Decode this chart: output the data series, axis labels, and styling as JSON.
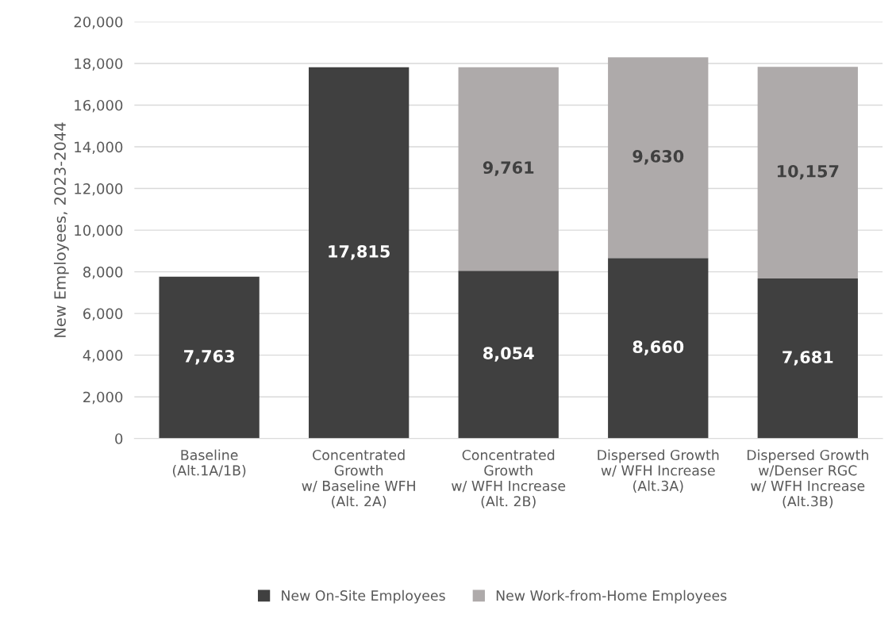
{
  "chart_data": {
    "type": "bar",
    "stacked": true,
    "ylabel": "New Employees, 2023-2044",
    "categories": [
      "Baseline\n(Alt.1A/1B)",
      "Concentrated\nGrowth\nw/ Baseline WFH\n(Alt. 2A)",
      "Concentrated\nGrowth\nw/ WFH Increase\n(Alt. 2B)",
      "Dispersed Growth\nw/ WFH Increase\n(Alt.3A)",
      "Dispersed Growth\nw/Denser RGC\nw/ WFH Increase\n(Alt.3B)"
    ],
    "series": [
      {
        "name": "New On-Site Employees",
        "color": "#404040",
        "values": [
          7763,
          17815,
          8054,
          8660,
          7681
        ],
        "value_labels": [
          "7,763",
          "17,815",
          "8,054",
          "8,660",
          "7,681"
        ]
      },
      {
        "name": "New Work-from-Home Employees",
        "color": "#aeaaaa",
        "values": [
          null,
          null,
          9761,
          9630,
          10157
        ],
        "value_labels": [
          null,
          null,
          "9,761",
          "9,630",
          "10,157"
        ]
      }
    ],
    "ylim": [
      0,
      20000
    ],
    "yticks": [
      {
        "value": 0,
        "label": "0"
      },
      {
        "value": 2000,
        "label": "2,000"
      },
      {
        "value": 4000,
        "label": "4,000"
      },
      {
        "value": 6000,
        "label": "6,000"
      },
      {
        "value": 8000,
        "label": "8,000"
      },
      {
        "value": 10000,
        "label": "10,000"
      },
      {
        "value": 12000,
        "label": "12,000"
      },
      {
        "value": 14000,
        "label": "14,000"
      },
      {
        "value": 16000,
        "label": "16,000"
      },
      {
        "value": 18000,
        "label": "18,000"
      },
      {
        "value": 20000,
        "label": "20,000"
      }
    ],
    "grid": "y",
    "legend": "bottom"
  }
}
